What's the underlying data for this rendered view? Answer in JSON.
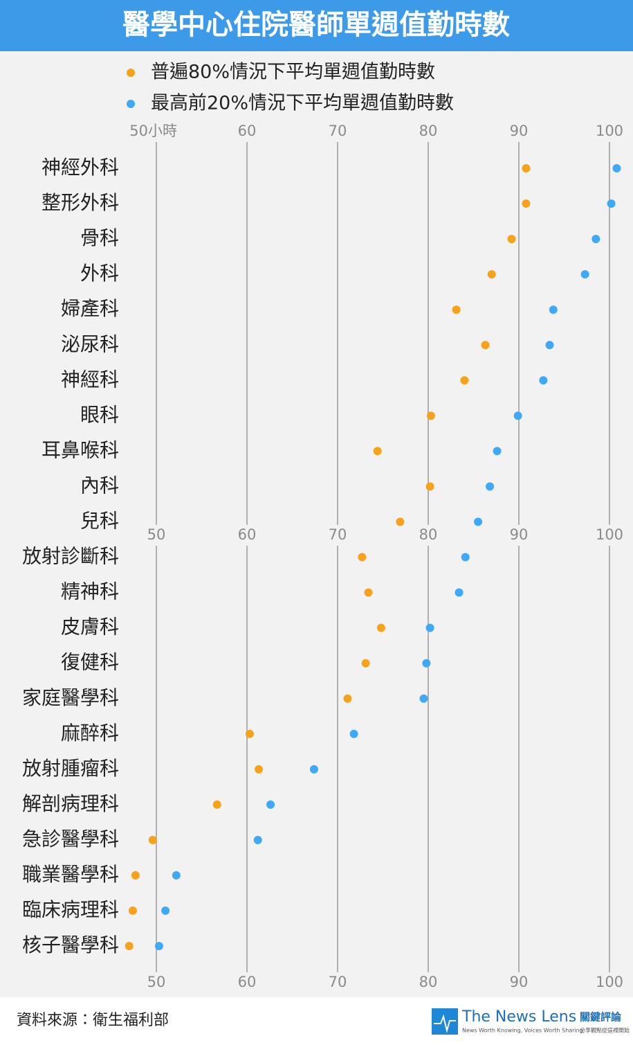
{
  "chart_data": {
    "type": "dot",
    "title": "醫學中心住院醫師單週值勤時數",
    "x_unit": "小時",
    "categories": [
      "神經外科",
      "整形外科",
      "骨科",
      "外科",
      "婦產科",
      "泌尿科",
      "神經科",
      "眼科",
      "耳鼻喉科",
      "內科",
      "兒科",
      "放射診斷科",
      "精神科",
      "皮膚科",
      "復健科",
      "家庭醫學科",
      "麻醉科",
      "放射腫瘤科",
      "解剖病理科",
      "急診醫學科",
      "職業醫學科",
      "臨床病理科",
      "核子醫學科"
    ],
    "series": [
      {
        "name": "普遍80%情況下平均單週值勤時數",
        "color": "#f7a21b",
        "values": [
          90.8,
          90.8,
          89.2,
          87.0,
          83.1,
          86.3,
          84.0,
          80.3,
          74.4,
          80.2,
          76.9,
          72.7,
          73.4,
          74.8,
          73.1,
          71.1,
          60.3,
          61.3,
          56.7,
          49.6,
          47.7,
          47.4,
          47.0
        ]
      },
      {
        "name": "最高前20%情況下平均單週值勤時數",
        "color": "#3fa9f5",
        "values": [
          100.8,
          100.2,
          98.5,
          97.3,
          93.8,
          93.4,
          92.7,
          89.9,
          87.6,
          86.8,
          85.5,
          84.1,
          83.4,
          80.2,
          79.8,
          79.5,
          71.8,
          67.4,
          62.6,
          61.2,
          52.2,
          51.0,
          50.3
        ]
      }
    ],
    "xlim": [
      45,
      102
    ],
    "xticks": [
      50,
      60,
      70,
      80,
      90,
      100
    ],
    "grid": true,
    "source": "資料來源：衛生福利部"
  },
  "brand": {
    "name": "The News Lens",
    "name_zh": "關鍵評論",
    "tagline": "News Worth Knowing, Voices Worth Sharing",
    "tagline_zh": "分享觀點從這裡開始"
  }
}
